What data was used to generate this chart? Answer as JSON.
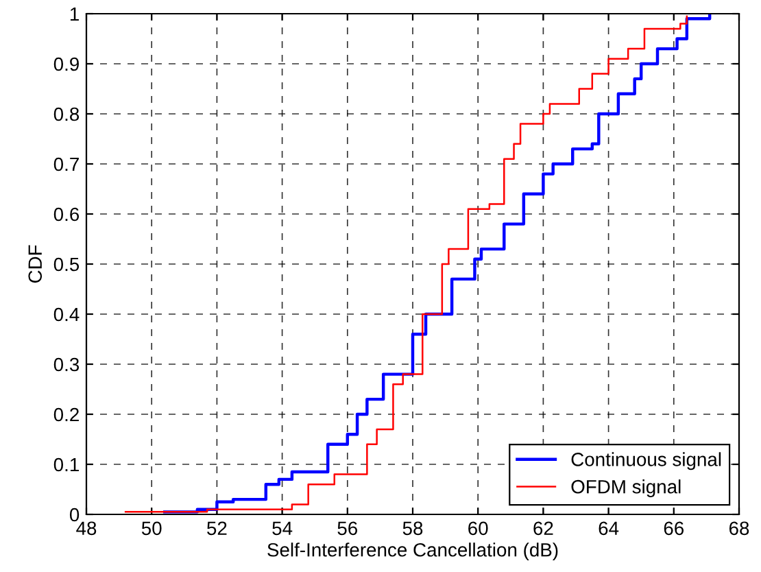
{
  "chart_data": {
    "type": "step",
    "xlabel": "Self-Interference Cancellation (dB)",
    "ylabel": "CDF",
    "xlim": [
      48,
      68
    ],
    "xticks": [
      48,
      50,
      52,
      54,
      56,
      58,
      60,
      62,
      64,
      66,
      68
    ],
    "ylim": [
      0,
      1
    ],
    "yticks": [
      0,
      0.1,
      0.2,
      0.3,
      0.4,
      0.5,
      0.6,
      0.7,
      0.8,
      0.9,
      1
    ],
    "grid": true,
    "legend": "bottom right",
    "line_style": "solid",
    "series": [
      {
        "name": "Continuous signal",
        "color": "#0000ff",
        "x": [
          50.4,
          51.4,
          52.0,
          52.5,
          53.5,
          53.9,
          54.3,
          55.1,
          55.4,
          56.0,
          56.3,
          56.6,
          57.1,
          58.0,
          58.4,
          59.2,
          59.9,
          60.1,
          60.8,
          61.4,
          62.0,
          62.3,
          62.8,
          62.9,
          63.5,
          63.7,
          64.2,
          64.3,
          64.8,
          65.0,
          65.5,
          66.1,
          66.4,
          67.1
        ],
        "values": [
          0.005,
          0.01,
          0.025,
          0.03,
          0.06,
          0.07,
          0.085,
          0.085,
          0.14,
          0.16,
          0.2,
          0.23,
          0.28,
          0.36,
          0.4,
          0.47,
          0.51,
          0.53,
          0.58,
          0.64,
          0.68,
          0.7,
          0.7,
          0.73,
          0.74,
          0.8,
          0.8,
          0.84,
          0.87,
          0.9,
          0.93,
          0.95,
          0.99,
          1.0
        ]
      },
      {
        "name": "OFDM signal",
        "color": "#ff0000",
        "x": [
          49.2,
          50.9,
          51.7,
          53.6,
          54.3,
          54.8,
          55.3,
          55.6,
          56.6,
          56.9,
          57.4,
          57.7,
          58.3,
          58.9,
          59.1,
          59.7,
          60.35,
          60.8,
          61.1,
          61.3,
          62.0,
          62.2,
          62.7,
          63.1,
          63.5,
          64.0,
          64.6,
          65.1,
          65.6,
          66.2,
          66.4
        ],
        "values": [
          0.005,
          0.005,
          0.01,
          0.01,
          0.02,
          0.06,
          0.06,
          0.08,
          0.14,
          0.17,
          0.26,
          0.28,
          0.4,
          0.5,
          0.53,
          0.61,
          0.62,
          0.71,
          0.74,
          0.78,
          0.8,
          0.82,
          0.82,
          0.85,
          0.88,
          0.91,
          0.93,
          0.97,
          0.97,
          0.98,
          0.995
        ]
      }
    ]
  }
}
